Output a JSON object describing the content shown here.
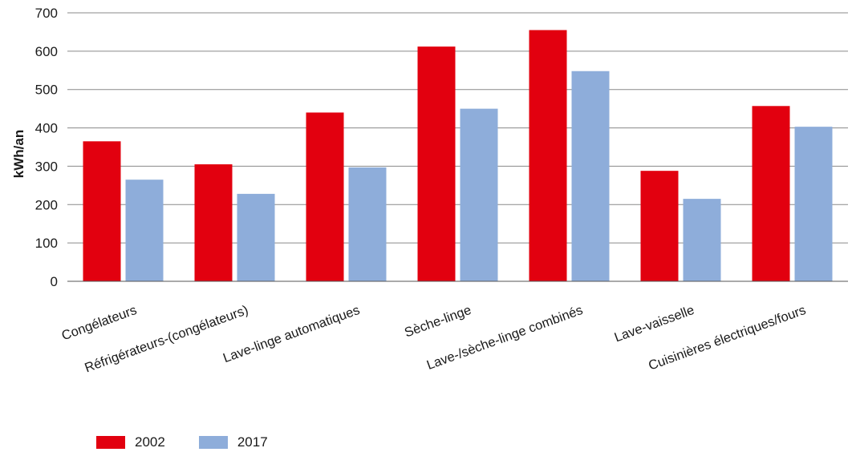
{
  "chart_data": {
    "type": "bar",
    "ylabel": "kWh/an",
    "ylim": [
      0,
      700
    ],
    "yticks": [
      0,
      100,
      200,
      300,
      400,
      500,
      600,
      700
    ],
    "grid": true,
    "legend_position": "bottom-left",
    "categories": [
      "Congélateurs",
      "Réfrigérateurs-(congélateurs)",
      "Lave-linge automatiques",
      "Sèche-linge",
      "Lave-/sèche-linge combinés",
      "Lave-vaisselle",
      "Cuisinières électriques/fours"
    ],
    "series": [
      {
        "name": "2002",
        "color": "#e2000f",
        "values": [
          365,
          305,
          440,
          612,
          655,
          288,
          457
        ]
      },
      {
        "name": "2017",
        "color": "#8eadda",
        "values": [
          265,
          228,
          297,
          450,
          548,
          215,
          403
        ]
      }
    ]
  }
}
